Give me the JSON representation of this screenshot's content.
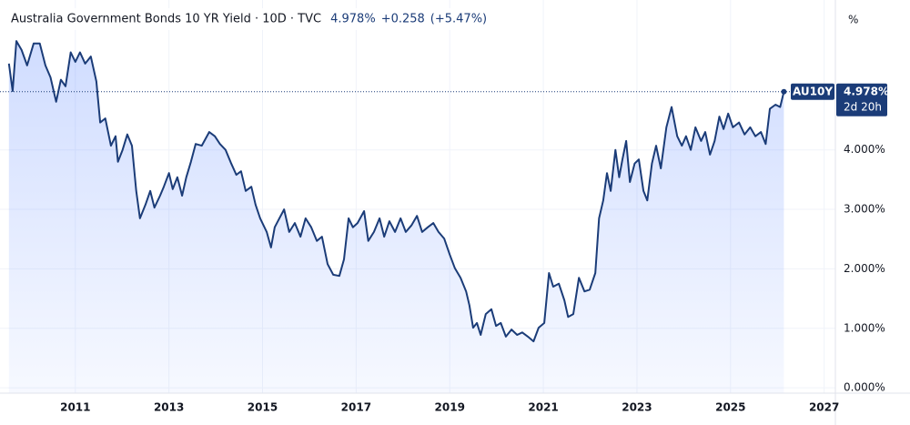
{
  "chart_data": {
    "type": "line",
    "title": "Australia Government Bonds 10 YR Yield · 10D · TVC",
    "last_label": "4.978%",
    "change": "+0.258",
    "change_pct": "(+5.47%)",
    "symbol": "AU10Y",
    "countdown": "2d 20h",
    "unit": "%",
    "xlim": [
      2009.39,
      2027.24
    ],
    "xticks": [
      2011,
      2013,
      2015,
      2017,
      2019,
      2021,
      2023,
      2025,
      2027
    ],
    "ylim": [
      -0.09,
      6.52
    ],
    "yticks": [
      {
        "value": 0,
        "label": "0.000%"
      },
      {
        "value": 1,
        "label": "1.000%"
      },
      {
        "value": 2,
        "label": "2.000%"
      },
      {
        "value": 3,
        "label": "3.000%"
      },
      {
        "value": 4,
        "label": "4.000%"
      }
    ],
    "grid": true,
    "series": [
      {
        "name": "AU10Y",
        "color": "#1b3c78",
        "x": [
          2009.58,
          2009.66,
          2009.74,
          2009.85,
          2009.97,
          2010.11,
          2010.24,
          2010.36,
          2010.47,
          2010.59,
          2010.69,
          2010.79,
          2010.9,
          2011.0,
          2011.1,
          2011.21,
          2011.33,
          2011.45,
          2011.53,
          2011.64,
          2011.76,
          2011.86,
          2011.91,
          2012.01,
          2012.11,
          2012.21,
          2012.3,
          2012.38,
          2012.5,
          2012.6,
          2012.69,
          2012.81,
          2012.89,
          2013.0,
          2013.08,
          2013.18,
          2013.28,
          2013.37,
          2013.47,
          2013.57,
          2013.7,
          2013.86,
          2013.98,
          2014.09,
          2014.21,
          2014.33,
          2014.44,
          2014.54,
          2014.64,
          2014.76,
          2014.85,
          2014.95,
          2015.09,
          2015.18,
          2015.26,
          2015.36,
          2015.46,
          2015.57,
          2015.69,
          2015.81,
          2015.92,
          2016.04,
          2016.16,
          2016.27,
          2016.39,
          2016.51,
          2016.64,
          2016.74,
          2016.84,
          2016.93,
          2017.03,
          2017.17,
          2017.26,
          2017.38,
          2017.5,
          2017.6,
          2017.71,
          2017.83,
          2017.95,
          2018.06,
          2018.18,
          2018.3,
          2018.41,
          2018.53,
          2018.65,
          2018.76,
          2018.88,
          2019.0,
          2019.11,
          2019.23,
          2019.35,
          2019.42,
          2019.5,
          2019.58,
          2019.66,
          2019.77,
          2019.89,
          2019.99,
          2020.09,
          2020.2,
          2020.32,
          2020.44,
          2020.55,
          2020.67,
          2020.79,
          2020.9,
          2021.02,
          2021.12,
          2021.21,
          2021.33,
          2021.45,
          2021.53,
          2021.64,
          2021.76,
          2021.88,
          2021.99,
          2022.11,
          2022.19,
          2022.28,
          2022.36,
          2022.44,
          2022.54,
          2022.62,
          2022.69,
          2022.77,
          2022.85,
          2022.95,
          2023.04,
          2023.14,
          2023.22,
          2023.32,
          2023.41,
          2023.51,
          2023.63,
          2023.74,
          2023.86,
          2023.96,
          2024.05,
          2024.15,
          2024.25,
          2024.37,
          2024.46,
          2024.56,
          2024.66,
          2024.76,
          2024.85,
          2024.95,
          2025.05,
          2025.18,
          2025.3,
          2025.42,
          2025.53,
          2025.65,
          2025.75,
          2025.84,
          2025.96,
          2026.06,
          2026.14
        ],
        "values": [
          5.45,
          4.99,
          5.83,
          5.68,
          5.42,
          5.79,
          5.79,
          5.42,
          5.22,
          4.81,
          5.18,
          5.07,
          5.64,
          5.48,
          5.64,
          5.45,
          5.57,
          5.15,
          4.46,
          4.53,
          4.07,
          4.23,
          3.8,
          4.0,
          4.26,
          4.07,
          3.31,
          2.85,
          3.08,
          3.31,
          3.03,
          3.23,
          3.38,
          3.61,
          3.34,
          3.54,
          3.23,
          3.54,
          3.8,
          4.1,
          4.07,
          4.3,
          4.23,
          4.1,
          4.0,
          3.77,
          3.58,
          3.64,
          3.31,
          3.38,
          3.08,
          2.85,
          2.62,
          2.36,
          2.7,
          2.85,
          3.0,
          2.62,
          2.77,
          2.54,
          2.85,
          2.7,
          2.47,
          2.54,
          2.08,
          1.9,
          1.88,
          2.16,
          2.85,
          2.7,
          2.77,
          2.97,
          2.47,
          2.62,
          2.85,
          2.54,
          2.8,
          2.62,
          2.85,
          2.62,
          2.73,
          2.89,
          2.62,
          2.7,
          2.77,
          2.62,
          2.51,
          2.24,
          2.01,
          1.85,
          1.62,
          1.39,
          1.01,
          1.09,
          0.89,
          1.24,
          1.32,
          1.04,
          1.09,
          0.86,
          0.98,
          0.89,
          0.93,
          0.86,
          0.78,
          1.01,
          1.09,
          1.93,
          1.7,
          1.75,
          1.47,
          1.19,
          1.24,
          1.85,
          1.62,
          1.65,
          1.93,
          2.85,
          3.15,
          3.61,
          3.31,
          4.0,
          3.54,
          3.84,
          4.15,
          3.46,
          3.77,
          3.84,
          3.31,
          3.15,
          3.77,
          4.07,
          3.69,
          4.38,
          4.72,
          4.23,
          4.07,
          4.23,
          4.0,
          4.38,
          4.15,
          4.3,
          3.92,
          4.15,
          4.56,
          4.35,
          4.61,
          4.38,
          4.46,
          4.26,
          4.38,
          4.23,
          4.3,
          4.1,
          4.69,
          4.76,
          4.72,
          4.978
        ]
      }
    ]
  }
}
